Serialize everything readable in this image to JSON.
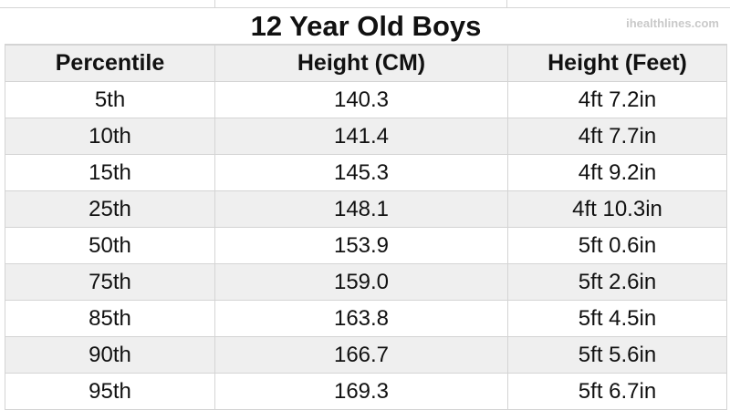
{
  "title": "12 Year Old Boys",
  "watermark": "ihealthlines.com",
  "columns": [
    "Percentile",
    "Height (CM)",
    "Height (Feet)"
  ],
  "rows": [
    [
      "5th",
      "140.3",
      "4ft 7.2in"
    ],
    [
      "10th",
      "141.4",
      "4ft 7.7in"
    ],
    [
      "15th",
      "145.3",
      "4ft 9.2in"
    ],
    [
      "25th",
      "148.1",
      "4ft 10.3in"
    ],
    [
      "50th",
      "153.9",
      "5ft 0.6in"
    ],
    [
      "75th",
      "159.0",
      "5ft 2.6in"
    ],
    [
      "85th",
      "163.8",
      "5ft 4.5in"
    ],
    [
      "90th",
      "166.7",
      "5ft 5.6in"
    ],
    [
      "95th",
      "169.3",
      "5ft 6.7in"
    ]
  ],
  "colors": {
    "shade": "#efefef",
    "grid": "#d4d4d4"
  }
}
